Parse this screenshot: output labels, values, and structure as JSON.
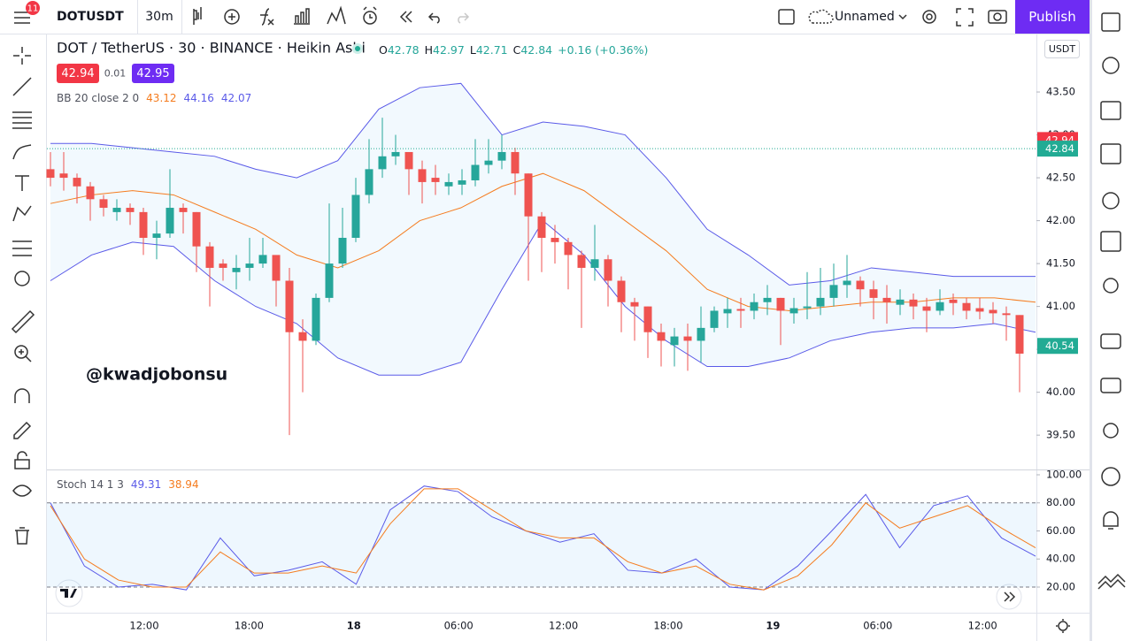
{
  "toolbar": {
    "badge": "11",
    "symbol": "DOTUSDT",
    "interval": "30m",
    "layout_name": "Unnamed",
    "publish": "Publish"
  },
  "chart_data": {
    "type": "candlestick",
    "title": "DOT / TetherUS · 30 · BINANCE · Heikin Ashi",
    "ohlc": [
      {
        "label": "O",
        "value": 42.78
      },
      {
        "label": "H",
        "value": 42.97
      },
      {
        "label": "L",
        "value": 42.71
      },
      {
        "label": "C",
        "value": 42.84
      }
    ],
    "change": "+0.16 (+0.36%)",
    "sell_price": 42.94,
    "spread": 0.01,
    "buy_price": 42.95,
    "indicator": {
      "name": "BB 20 close 2 0",
      "values": [
        43.12,
        44.16,
        42.07
      ]
    },
    "watermark": "@kwadjobonsu",
    "currency": "USDT",
    "colors": {
      "up": "#26a69a",
      "down": "#ef5350",
      "basis": "#f57c1f",
      "band": "#5a5ae8"
    },
    "candles": [
      [
        42.6,
        42.8,
        42.4,
        42.5
      ],
      [
        42.55,
        42.8,
        42.35,
        42.5
      ],
      [
        42.5,
        42.55,
        42.2,
        42.4
      ],
      [
        42.4,
        42.45,
        42.0,
        42.25
      ],
      [
        42.25,
        42.3,
        42.05,
        42.15
      ],
      [
        42.1,
        42.25,
        42.0,
        42.15
      ],
      [
        42.15,
        42.2,
        41.95,
        42.1
      ],
      [
        42.1,
        42.15,
        41.6,
        41.8
      ],
      [
        41.8,
        42.0,
        41.55,
        41.85
      ],
      [
        41.85,
        42.6,
        41.8,
        42.15
      ],
      [
        42.15,
        42.2,
        41.85,
        42.1
      ],
      [
        42.1,
        42.1,
        41.4,
        41.7
      ],
      [
        41.7,
        41.75,
        41.0,
        41.45
      ],
      [
        41.5,
        41.55,
        41.3,
        41.45
      ],
      [
        41.4,
        41.6,
        41.2,
        41.45
      ],
      [
        41.45,
        41.8,
        41.3,
        41.5
      ],
      [
        41.5,
        41.8,
        41.45,
        41.6
      ],
      [
        41.6,
        41.55,
        41.0,
        41.3
      ],
      [
        41.3,
        41.45,
        39.5,
        40.7
      ],
      [
        40.7,
        40.85,
        40.0,
        40.6
      ],
      [
        40.6,
        41.15,
        40.55,
        41.1
      ],
      [
        41.1,
        42.2,
        41.05,
        41.5
      ],
      [
        41.5,
        42.15,
        41.45,
        41.8
      ],
      [
        41.8,
        42.5,
        41.75,
        42.3
      ],
      [
        42.3,
        42.95,
        42.2,
        42.6
      ],
      [
        42.6,
        43.2,
        42.5,
        42.75
      ],
      [
        42.75,
        43.0,
        42.65,
        42.8
      ],
      [
        42.8,
        42.8,
        42.3,
        42.6
      ],
      [
        42.6,
        42.7,
        42.2,
        42.45
      ],
      [
        42.5,
        42.65,
        42.3,
        42.45
      ],
      [
        42.4,
        42.55,
        42.3,
        42.45
      ],
      [
        42.42,
        42.6,
        42.3,
        42.47
      ],
      [
        42.47,
        42.95,
        42.4,
        42.65
      ],
      [
        42.65,
        42.95,
        42.55,
        42.7
      ],
      [
        42.7,
        43.0,
        42.6,
        42.8
      ],
      [
        42.8,
        42.85,
        42.3,
        42.55
      ],
      [
        42.55,
        42.55,
        41.3,
        42.05
      ],
      [
        42.05,
        42.1,
        41.4,
        41.8
      ],
      [
        41.8,
        41.95,
        41.5,
        41.75
      ],
      [
        41.75,
        41.8,
        41.2,
        41.6
      ],
      [
        41.6,
        41.65,
        40.75,
        41.45
      ],
      [
        41.45,
        41.95,
        41.3,
        41.55
      ],
      [
        41.55,
        41.6,
        41.0,
        41.3
      ],
      [
        41.3,
        41.35,
        40.7,
        41.05
      ],
      [
        41.05,
        41.1,
        40.6,
        41.0
      ],
      [
        41.0,
        41.0,
        40.4,
        40.7
      ],
      [
        40.7,
        40.8,
        40.3,
        40.6
      ],
      [
        40.55,
        40.75,
        40.3,
        40.65
      ],
      [
        40.65,
        40.8,
        40.25,
        40.6
      ],
      [
        40.6,
        41.0,
        40.35,
        40.75
      ],
      [
        40.75,
        41.0,
        40.7,
        40.95
      ],
      [
        40.92,
        41.1,
        40.75,
        40.97
      ],
      [
        40.97,
        41.1,
        40.75,
        40.95
      ],
      [
        40.95,
        41.15,
        40.85,
        41.05
      ],
      [
        41.05,
        41.25,
        40.9,
        41.1
      ],
      [
        41.1,
        41.1,
        40.55,
        40.95
      ],
      [
        40.92,
        41.1,
        40.8,
        40.98
      ],
      [
        40.98,
        41.4,
        40.85,
        41.0
      ],
      [
        41.0,
        41.45,
        40.9,
        41.1
      ],
      [
        41.1,
        41.5,
        41.0,
        41.25
      ],
      [
        41.25,
        41.6,
        41.1,
        41.3
      ],
      [
        41.3,
        41.35,
        41.0,
        41.2
      ],
      [
        41.2,
        41.3,
        40.85,
        41.1
      ],
      [
        41.1,
        41.25,
        40.8,
        41.05
      ],
      [
        41.02,
        41.2,
        40.9,
        41.08
      ],
      [
        41.08,
        41.15,
        40.85,
        41.0
      ],
      [
        41.0,
        41.1,
        40.7,
        40.95
      ],
      [
        40.95,
        41.2,
        40.9,
        41.05
      ],
      [
        41.08,
        41.15,
        40.9,
        41.04
      ],
      [
        41.04,
        41.1,
        40.85,
        40.95
      ],
      [
        40.98,
        41.1,
        40.85,
        40.94
      ],
      [
        40.96,
        41.05,
        40.8,
        40.92
      ],
      [
        40.92,
        41.0,
        40.6,
        40.9
      ],
      [
        40.9,
        40.9,
        40.0,
        40.45
      ]
    ],
    "bb_upper": [
      42.9,
      42.9,
      42.85,
      42.8,
      42.75,
      42.6,
      42.5,
      42.7,
      43.3,
      43.55,
      43.6,
      43.0,
      43.15,
      43.1,
      43.0,
      42.5,
      41.9,
      41.6,
      41.25,
      41.3,
      41.45,
      41.4,
      41.35,
      41.35,
      41.35
    ],
    "bb_basis": [
      42.2,
      42.3,
      42.35,
      42.3,
      42.1,
      41.9,
      41.6,
      41.45,
      41.65,
      42.0,
      42.15,
      42.4,
      42.55,
      42.35,
      42.0,
      41.65,
      41.2,
      41.0,
      40.95,
      41.0,
      41.05,
      41.05,
      41.1,
      41.1,
      41.05
    ],
    "bb_lower": [
      41.3,
      41.6,
      41.75,
      41.7,
      41.3,
      41.0,
      40.8,
      40.4,
      40.2,
      40.2,
      40.35,
      41.2,
      42.0,
      41.6,
      41.0,
      40.6,
      40.3,
      40.3,
      40.4,
      40.6,
      40.7,
      40.75,
      40.75,
      40.8,
      40.7
    ],
    "ylim": [
      39.11,
      44.16
    ],
    "yticks": [
      {
        "value": 43.5,
        "label": "43.50"
      },
      {
        "value": 43,
        "label": "43.00"
      },
      {
        "value": 42.5,
        "label": "42.50"
      },
      {
        "value": 42,
        "label": "42.00"
      },
      {
        "value": 41.5,
        "label": "41.50"
      },
      {
        "value": 41,
        "label": "41.00"
      },
      {
        "value": 40.5,
        "label": "40.50"
      },
      {
        "value": 40,
        "label": "40.00"
      },
      {
        "value": 39.5,
        "label": "39.50"
      }
    ],
    "price_tags": [
      {
        "value": 42.94,
        "color": "#f23645"
      },
      {
        "value": 42.84,
        "color": "#22ab94"
      },
      {
        "value": 40.54,
        "color": "#22ab94"
      }
    ],
    "xlabels": [
      "12:00",
      "18:00",
      "18",
      "06:00",
      "12:00",
      "18:00",
      "19",
      "06:00",
      "12:00"
    ],
    "stoch": {
      "name": "Stoch 14 1 3",
      "values": [
        49.31,
        38.94
      ],
      "colors": [
        "#5a5ae8",
        "#f57c1f"
      ],
      "k": [
        80,
        35,
        20,
        22,
        18,
        55,
        28,
        32,
        38,
        22,
        75,
        92,
        88,
        70,
        60,
        52,
        58,
        32,
        30,
        40,
        20,
        18,
        35,
        60,
        86,
        48,
        78,
        85,
        55,
        42
      ],
      "d": [
        78,
        40,
        25,
        20,
        20,
        45,
        30,
        30,
        35,
        30,
        65,
        90,
        90,
        75,
        60,
        55,
        55,
        38,
        30,
        35,
        22,
        18,
        28,
        50,
        80,
        62,
        70,
        78,
        62,
        48
      ],
      "ylim": [
        1.73,
        103.15
      ],
      "yticks": [
        {
          "value": 100,
          "label": "100.00"
        },
        {
          "value": 80,
          "label": "80.00"
        },
        {
          "value": 60,
          "label": "60.00"
        },
        {
          "value": 40,
          "label": "40.00"
        },
        {
          "value": 20,
          "label": "20.00"
        }
      ]
    }
  }
}
